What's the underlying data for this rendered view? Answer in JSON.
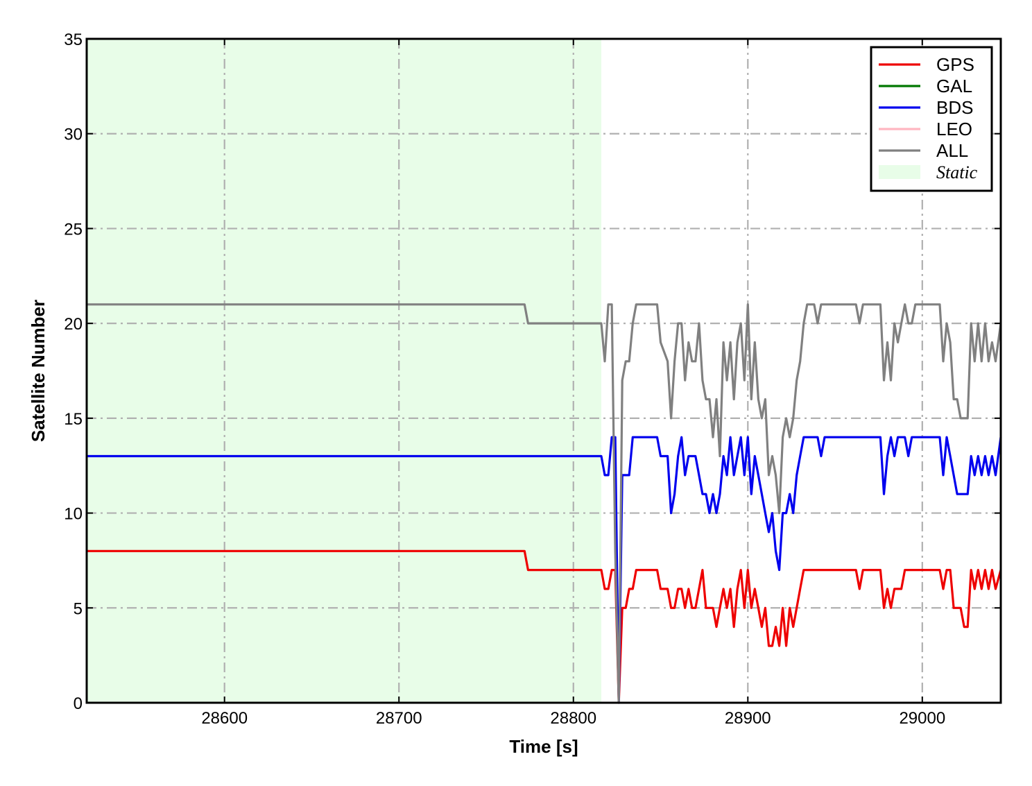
{
  "chart_data": {
    "type": "line",
    "xlabel": "Time [s]",
    "ylabel": "Satellite Number",
    "xlim": [
      28521,
      29045
    ],
    "ylim": [
      0,
      35
    ],
    "xticks": [
      28600,
      28700,
      28800,
      28900,
      29000
    ],
    "yticks": [
      0,
      5,
      10,
      15,
      20,
      25,
      30,
      35
    ],
    "grid": true,
    "legend_position": "top-right",
    "shaded_region": {
      "name": "Static",
      "x_start": 28521,
      "x_end": 28816,
      "color": "#e8fde8"
    },
    "series": [
      {
        "name": "GPS",
        "color": "#ee0000",
        "points": [
          [
            28521,
            8
          ],
          [
            28772,
            8
          ],
          [
            28774,
            7
          ],
          [
            28816,
            7
          ],
          [
            28818,
            6
          ],
          [
            28820,
            6
          ],
          [
            28822,
            7
          ],
          [
            28824,
            7
          ],
          [
            28826,
            0
          ],
          [
            28828,
            5
          ],
          [
            28830,
            5
          ],
          [
            28832,
            6
          ],
          [
            28834,
            6
          ],
          [
            28836,
            7
          ],
          [
            28848,
            7
          ],
          [
            28850,
            6
          ],
          [
            28854,
            6
          ],
          [
            28856,
            5
          ],
          [
            28858,
            5
          ],
          [
            28860,
            6
          ],
          [
            28862,
            6
          ],
          [
            28864,
            5
          ],
          [
            28866,
            6
          ],
          [
            28868,
            5
          ],
          [
            28870,
            5
          ],
          [
            28872,
            6
          ],
          [
            28874,
            7
          ],
          [
            28876,
            5
          ],
          [
            28878,
            5
          ],
          [
            28880,
            5
          ],
          [
            28882,
            4
          ],
          [
            28884,
            5
          ],
          [
            28886,
            6
          ],
          [
            28888,
            5
          ],
          [
            28890,
            6
          ],
          [
            28892,
            4
          ],
          [
            28894,
            6
          ],
          [
            28896,
            7
          ],
          [
            28898,
            5
          ],
          [
            28900,
            7
          ],
          [
            28902,
            5
          ],
          [
            28904,
            6
          ],
          [
            28906,
            5
          ],
          [
            28908,
            4
          ],
          [
            28910,
            5
          ],
          [
            28912,
            3
          ],
          [
            28914,
            3
          ],
          [
            28916,
            4
          ],
          [
            28918,
            3
          ],
          [
            28920,
            5
          ],
          [
            28922,
            3
          ],
          [
            28924,
            5
          ],
          [
            28926,
            4
          ],
          [
            28928,
            5
          ],
          [
            28930,
            6
          ],
          [
            28932,
            7
          ],
          [
            28962,
            7
          ],
          [
            28964,
            6
          ],
          [
            28966,
            7
          ],
          [
            28976,
            7
          ],
          [
            28978,
            5
          ],
          [
            28980,
            6
          ],
          [
            28982,
            5
          ],
          [
            28984,
            6
          ],
          [
            28988,
            6
          ],
          [
            28990,
            7
          ],
          [
            29010,
            7
          ],
          [
            29012,
            6
          ],
          [
            29014,
            7
          ],
          [
            29016,
            7
          ],
          [
            29018,
            5
          ],
          [
            29022,
            5
          ],
          [
            29024,
            4
          ],
          [
            29026,
            4
          ],
          [
            29028,
            7
          ],
          [
            29030,
            6
          ],
          [
            29032,
            7
          ],
          [
            29034,
            6
          ],
          [
            29036,
            7
          ],
          [
            29038,
            6
          ],
          [
            29040,
            7
          ],
          [
            29042,
            6
          ],
          [
            29045,
            7
          ]
        ]
      },
      {
        "name": "GAL",
        "color": "#007700",
        "points": []
      },
      {
        "name": "BDS",
        "color": "#0000ee",
        "points": [
          [
            28521,
            13
          ],
          [
            28816,
            13
          ],
          [
            28818,
            12
          ],
          [
            28820,
            12
          ],
          [
            28822,
            14
          ],
          [
            28824,
            14
          ],
          [
            28826,
            0
          ],
          [
            28828,
            12
          ],
          [
            28830,
            12
          ],
          [
            28832,
            12
          ],
          [
            28834,
            14
          ],
          [
            28848,
            14
          ],
          [
            28850,
            13
          ],
          [
            28854,
            13
          ],
          [
            28856,
            10
          ],
          [
            28858,
            11
          ],
          [
            28860,
            13
          ],
          [
            28862,
            14
          ],
          [
            28864,
            12
          ],
          [
            28866,
            13
          ],
          [
            28868,
            13
          ],
          [
            28870,
            13
          ],
          [
            28872,
            12
          ],
          [
            28874,
            11
          ],
          [
            28876,
            11
          ],
          [
            28878,
            10
          ],
          [
            28880,
            11
          ],
          [
            28882,
            10
          ],
          [
            28884,
            11
          ],
          [
            28886,
            13
          ],
          [
            28888,
            12
          ],
          [
            28890,
            14
          ],
          [
            28892,
            12
          ],
          [
            28894,
            13
          ],
          [
            28896,
            14
          ],
          [
            28898,
            12
          ],
          [
            28900,
            14
          ],
          [
            28902,
            11
          ],
          [
            28904,
            13
          ],
          [
            28906,
            12
          ],
          [
            28908,
            11
          ],
          [
            28910,
            10
          ],
          [
            28912,
            9
          ],
          [
            28914,
            10
          ],
          [
            28916,
            8
          ],
          [
            28918,
            7
          ],
          [
            28920,
            10
          ],
          [
            28922,
            10
          ],
          [
            28924,
            11
          ],
          [
            28926,
            10
          ],
          [
            28928,
            12
          ],
          [
            28930,
            13
          ],
          [
            28932,
            14
          ],
          [
            28940,
            14
          ],
          [
            28942,
            13
          ],
          [
            28944,
            14
          ],
          [
            28976,
            14
          ],
          [
            28978,
            11
          ],
          [
            28980,
            13
          ],
          [
            28982,
            14
          ],
          [
            28984,
            13
          ],
          [
            28986,
            14
          ],
          [
            28990,
            14
          ],
          [
            28992,
            13
          ],
          [
            28994,
            14
          ],
          [
            29010,
            14
          ],
          [
            29012,
            12
          ],
          [
            29014,
            14
          ],
          [
            29016,
            13
          ],
          [
            29018,
            12
          ],
          [
            29020,
            11
          ],
          [
            29026,
            11
          ],
          [
            29028,
            13
          ],
          [
            29030,
            12
          ],
          [
            29032,
            13
          ],
          [
            29034,
            12
          ],
          [
            29036,
            13
          ],
          [
            29038,
            12
          ],
          [
            29040,
            13
          ],
          [
            29042,
            12
          ],
          [
            29045,
            14
          ]
        ]
      },
      {
        "name": "LEO",
        "color": "#ffb6c1",
        "points": []
      },
      {
        "name": "ALL",
        "color": "#808080",
        "points": [
          [
            28521,
            21
          ],
          [
            28772,
            21
          ],
          [
            28774,
            20
          ],
          [
            28816,
            20
          ],
          [
            28818,
            18
          ],
          [
            28820,
            21
          ],
          [
            28822,
            21
          ],
          [
            28824,
            8
          ],
          [
            28826,
            0
          ],
          [
            28828,
            17
          ],
          [
            28830,
            18
          ],
          [
            28832,
            18
          ],
          [
            28834,
            20
          ],
          [
            28836,
            21
          ],
          [
            28848,
            21
          ],
          [
            28850,
            19
          ],
          [
            28854,
            18
          ],
          [
            28856,
            15
          ],
          [
            28858,
            18
          ],
          [
            28860,
            20
          ],
          [
            28862,
            20
          ],
          [
            28864,
            17
          ],
          [
            28866,
            19
          ],
          [
            28868,
            18
          ],
          [
            28870,
            18
          ],
          [
            28872,
            20
          ],
          [
            28874,
            17
          ],
          [
            28876,
            16
          ],
          [
            28878,
            16
          ],
          [
            28880,
            14
          ],
          [
            28882,
            16
          ],
          [
            28884,
            13
          ],
          [
            28886,
            19
          ],
          [
            28888,
            17
          ],
          [
            28890,
            19
          ],
          [
            28892,
            16
          ],
          [
            28894,
            19
          ],
          [
            28896,
            20
          ],
          [
            28898,
            17
          ],
          [
            28900,
            21
          ],
          [
            28902,
            16
          ],
          [
            28904,
            19
          ],
          [
            28906,
            16
          ],
          [
            28908,
            15
          ],
          [
            28910,
            16
          ],
          [
            28912,
            12
          ],
          [
            28914,
            13
          ],
          [
            28916,
            12
          ],
          [
            28918,
            10
          ],
          [
            28920,
            14
          ],
          [
            28922,
            15
          ],
          [
            28924,
            14
          ],
          [
            28926,
            15
          ],
          [
            28928,
            17
          ],
          [
            28930,
            18
          ],
          [
            28932,
            20
          ],
          [
            28934,
            21
          ],
          [
            28938,
            21
          ],
          [
            28940,
            20
          ],
          [
            28942,
            21
          ],
          [
            28962,
            21
          ],
          [
            28964,
            20
          ],
          [
            28966,
            21
          ],
          [
            28976,
            21
          ],
          [
            28978,
            17
          ],
          [
            28980,
            19
          ],
          [
            28982,
            17
          ],
          [
            28984,
            20
          ],
          [
            28986,
            19
          ],
          [
            28988,
            20
          ],
          [
            28990,
            21
          ],
          [
            28992,
            20
          ],
          [
            28994,
            20
          ],
          [
            28996,
            21
          ],
          [
            29010,
            21
          ],
          [
            29012,
            18
          ],
          [
            29014,
            20
          ],
          [
            29016,
            19
          ],
          [
            29018,
            16
          ],
          [
            29020,
            16
          ],
          [
            29022,
            15
          ],
          [
            29024,
            15
          ],
          [
            29026,
            15
          ],
          [
            29028,
            20
          ],
          [
            29030,
            18
          ],
          [
            29032,
            20
          ],
          [
            29034,
            18
          ],
          [
            29036,
            20
          ],
          [
            29038,
            18
          ],
          [
            29040,
            19
          ],
          [
            29042,
            18
          ],
          [
            29045,
            20
          ]
        ]
      }
    ]
  }
}
